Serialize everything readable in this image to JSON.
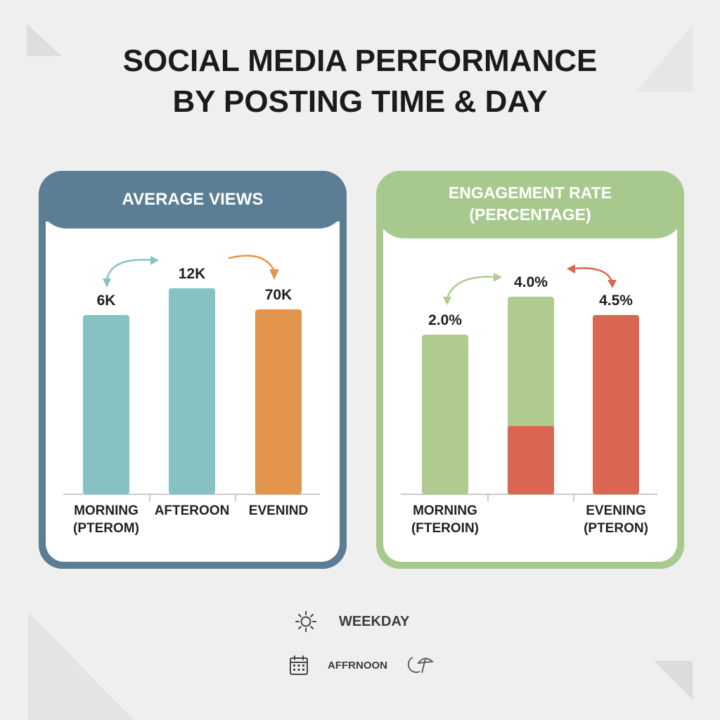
{
  "title_lines": [
    "SOCIAL MEDIA PERFORMANCE",
    "BY POSTING TIME & DAY"
  ],
  "colors": {
    "teal": "#86c1c4",
    "orange": "#e3954e",
    "green": "#afcb8f",
    "red": "#d96650",
    "views_frame": "#5c7e94",
    "engagement_frame": "#a8c98e"
  },
  "chart_data": [
    {
      "type": "bar",
      "title": "AVERAGE VIEWS",
      "categories": [
        "MORNING\n(PTEROM)",
        "AFTEROON",
        "EVENIND"
      ],
      "values": [
        6,
        12,
        70
      ],
      "data_labels": [
        "6K",
        "12K",
        "70K"
      ],
      "bar_colors": [
        "#86c1c4",
        "#86c1c4",
        "#e3954e"
      ],
      "grid": false
    },
    {
      "type": "bar",
      "title": "ENGAGEMENT RATE\n(PERCENTAGE)",
      "categories": [
        "MORNING\n(FTEROIN)",
        "",
        "EVENING\n(PTERON)"
      ],
      "values": [
        2.0,
        4.0,
        4.5
      ],
      "data_labels": [
        "2.0%",
        "4.0%",
        "4.5%"
      ],
      "bar_colors": [
        "#afcb8f",
        "#afcb8f",
        "#d96650"
      ],
      "grid": false
    }
  ],
  "legend": [
    {
      "icon": "sun-icon",
      "label": "WEEKDAY"
    },
    {
      "icon": "calendar-icon",
      "label": "AFFRNOON",
      "icon_after": "moon-umbrella-icon"
    }
  ]
}
